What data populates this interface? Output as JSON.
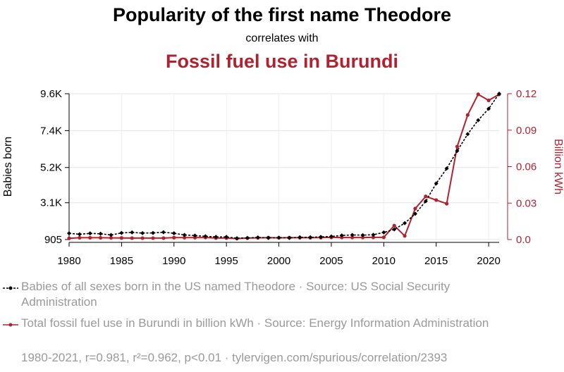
{
  "chart_data": {
    "type": "line",
    "title": "Popularity of the first name Theodore",
    "subtitle": "correlates with",
    "title2": "Fossil fuel use in Burundi",
    "ylabel_left": "Babies born",
    "ylabel_right": "Billion kWh",
    "left_ticks": [
      "905",
      "3.1K",
      "5.2K",
      "7.4K",
      "9.6K"
    ],
    "left_tick_values": [
      905,
      3100,
      5200,
      7400,
      9600
    ],
    "right_ticks": [
      "0.0",
      "0.03",
      "0.06",
      "0.09",
      "0.12"
    ],
    "right_tick_values": [
      0,
      0.03,
      0.06,
      0.09,
      0.12
    ],
    "x_ticks": [
      "1980",
      "1985",
      "1990",
      "1995",
      "2000",
      "2005",
      "2010",
      "2015",
      "2020"
    ],
    "x_tick_values": [
      1980,
      1985,
      1990,
      1995,
      2000,
      2005,
      2010,
      2015,
      2020
    ],
    "xlim": [
      1980,
      2021
    ],
    "ylim_left": [
      905,
      9600
    ],
    "ylim_right": [
      0,
      0.12
    ],
    "grid": true,
    "x": [
      1980,
      1981,
      1982,
      1983,
      1984,
      1985,
      1986,
      1987,
      1988,
      1989,
      1990,
      1991,
      1992,
      1993,
      1994,
      1995,
      1996,
      1997,
      1998,
      1999,
      2000,
      2001,
      2002,
      2003,
      2004,
      2005,
      2006,
      2007,
      2008,
      2009,
      2010,
      2011,
      2012,
      2013,
      2014,
      2015,
      2016,
      2017,
      2018,
      2019,
      2020,
      2021
    ],
    "series": [
      {
        "name": "Babies of all sexes born in the US named Theodore",
        "axis": "left",
        "color": "#000000",
        "style": "dashed",
        "values": [
          1276,
          1220,
          1270,
          1250,
          1180,
          1300,
          1330,
          1290,
          1300,
          1340,
          1280,
          1180,
          1140,
          1100,
          1060,
          1060,
          985,
          1000,
          1030,
          1000,
          1020,
          1000,
          1040,
          1040,
          1060,
          1090,
          1150,
          1180,
          1170,
          1190,
          1330,
          1510,
          1880,
          2440,
          3190,
          4250,
          5140,
          6190,
          7190,
          8020,
          8700,
          9600
        ]
      },
      {
        "name": "Total fossil fuel use in Burundi in billion kWh",
        "axis": "right",
        "color": "#b0222f",
        "style": "solid",
        "values": [
          0.001,
          0.0015,
          0.0015,
          0.0015,
          0.0014,
          0.0013,
          0.0012,
          0.0012,
          0.0012,
          0.0012,
          0.0016,
          0.0016,
          0.0016,
          0.0017,
          0.0012,
          0.0012,
          0.0008,
          0.0012,
          0.0014,
          0.0016,
          0.0014,
          0.0016,
          0.0015,
          0.0015,
          0.0016,
          0.0018,
          0.0017,
          0.0017,
          0.0017,
          0.0018,
          0.0018,
          0.0115,
          0.003,
          0.0255,
          0.0355,
          0.0325,
          0.0295,
          0.0765,
          0.1025,
          0.1195,
          0.1145,
          0.1195
        ]
      }
    ],
    "legend": [
      {
        "label": "Babies of all sexes born in the US named Theodore · Source: US Social Security Administration"
      },
      {
        "label": "Total fossil fuel use in Burundi in billion kWh · Source: Energy Information Administration"
      }
    ],
    "footer": "1980-2021, r=0.981, r²=0.962, p<0.01 · tylervigen.com/spurious/correlation/2393"
  }
}
